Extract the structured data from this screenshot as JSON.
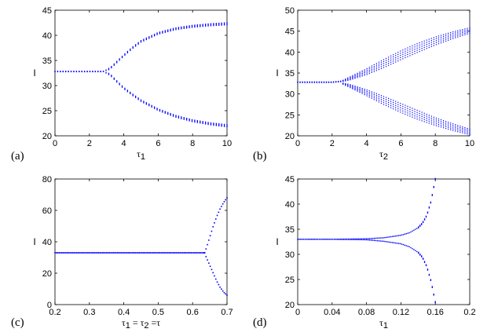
{
  "chart_data": [
    {
      "panel_label": "(a)",
      "type": "scatter",
      "xlabel": "τ",
      "xlabel_sub": "1",
      "ylabel": "I",
      "xlim": [
        0,
        10
      ],
      "ylim": [
        20,
        45
      ],
      "xticks": [
        "0",
        "2",
        "4",
        "6",
        "8",
        "10"
      ],
      "yticks": [
        "20",
        "25",
        "30",
        "35",
        "40",
        "45"
      ],
      "grid": false,
      "legend": "none",
      "series": [
        {
          "x": [
            0,
            1,
            2,
            2.8,
            3.2,
            3.6,
            4,
            4.5,
            5,
            6,
            7,
            8,
            9,
            10
          ],
          "upper": [
            32.8,
            32.8,
            32.8,
            32.8,
            33.4,
            34.7,
            36.0,
            37.5,
            38.8,
            40.4,
            41.3,
            41.8,
            42.1,
            42.3
          ],
          "lower": [
            32.8,
            32.8,
            32.8,
            32.8,
            32.2,
            30.8,
            29.5,
            28.2,
            27.0,
            25.2,
            23.9,
            23.0,
            22.4,
            22.0
          ]
        }
      ]
    },
    {
      "panel_label": "(b)",
      "type": "scatter",
      "xlabel": "τ",
      "xlabel_sub": "2",
      "ylabel": "I",
      "xlim": [
        0,
        10
      ],
      "ylim": [
        20,
        50
      ],
      "xticks": [
        "0",
        "2",
        "4",
        "6",
        "8",
        "10"
      ],
      "yticks": [
        "20",
        "25",
        "30",
        "35",
        "40",
        "45",
        "50"
      ],
      "grid": false,
      "legend": "none",
      "series": [
        {
          "x": [
            0,
            1,
            2,
            2.5,
            3,
            4,
            5,
            6,
            7,
            8,
            9,
            10
          ],
          "upper_max": [
            32.8,
            32.8,
            32.8,
            33.0,
            34.0,
            36.0,
            38.2,
            40.3,
            42.1,
            43.6,
            44.8,
            45.8
          ],
          "upper_min": [
            32.8,
            32.8,
            32.8,
            32.9,
            33.3,
            34.6,
            36.3,
            38.2,
            40.0,
            41.7,
            43.2,
            44.5
          ],
          "lower_max": [
            32.8,
            32.8,
            32.8,
            32.7,
            32.3,
            31.0,
            29.4,
            27.7,
            26.0,
            24.3,
            22.9,
            21.6
          ],
          "lower_min": [
            32.8,
            32.8,
            32.8,
            32.6,
            31.6,
            29.6,
            27.5,
            25.6,
            23.9,
            22.5,
            21.3,
            20.3
          ]
        }
      ]
    },
    {
      "panel_label": "(c)",
      "type": "scatter",
      "xlabel": "τ",
      "xlabel_parts": [
        "1",
        "= τ",
        "2",
        "=τ"
      ],
      "ylabel": "I",
      "xlim": [
        0.2,
        0.7
      ],
      "ylim": [
        0,
        80
      ],
      "xticks": [
        "0.2",
        "0.3",
        "0.4",
        "0.5",
        "0.6",
        "0.7"
      ],
      "yticks": [
        "0",
        "20",
        "40",
        "60",
        "80"
      ],
      "grid": false,
      "legend": "none",
      "series": [
        {
          "x": [
            0.2,
            0.3,
            0.4,
            0.5,
            0.6,
            0.635,
            0.64,
            0.65,
            0.66,
            0.67,
            0.68,
            0.69,
            0.7
          ],
          "upper": [
            33,
            33,
            33,
            33,
            33,
            33,
            36,
            43,
            50,
            56,
            61,
            65,
            68
          ],
          "lower": [
            33,
            33,
            33,
            33,
            33,
            33,
            30,
            25,
            20,
            15,
            11,
            8,
            6
          ]
        }
      ]
    },
    {
      "panel_label": "(d)",
      "type": "scatter",
      "xlabel": "τ",
      "xlabel_sub": "1",
      "ylabel": "I",
      "xlim": [
        0,
        0.2
      ],
      "ylim": [
        20,
        45
      ],
      "xticks": [
        "0",
        "0.04",
        "0.08",
        "0.12",
        "0.16",
        "0.2"
      ],
      "yticks": [
        "20",
        "25",
        "30",
        "35",
        "40",
        "45"
      ],
      "grid": false,
      "legend": "none",
      "series": [
        {
          "x": [
            0,
            0.04,
            0.08,
            0.1,
            0.12,
            0.13,
            0.14,
            0.145,
            0.15,
            0.155,
            0.16
          ],
          "upper": [
            33,
            33,
            33.1,
            33.3,
            33.8,
            34.3,
            35.3,
            36.2,
            37.7,
            40.5,
            45
          ],
          "lower": [
            33,
            33,
            32.9,
            32.6,
            32.1,
            31.5,
            30.4,
            29.4,
            27.6,
            24.7,
            20.5
          ]
        }
      ]
    }
  ],
  "colors": {
    "points": "#0000ff",
    "axes": "#000000"
  }
}
